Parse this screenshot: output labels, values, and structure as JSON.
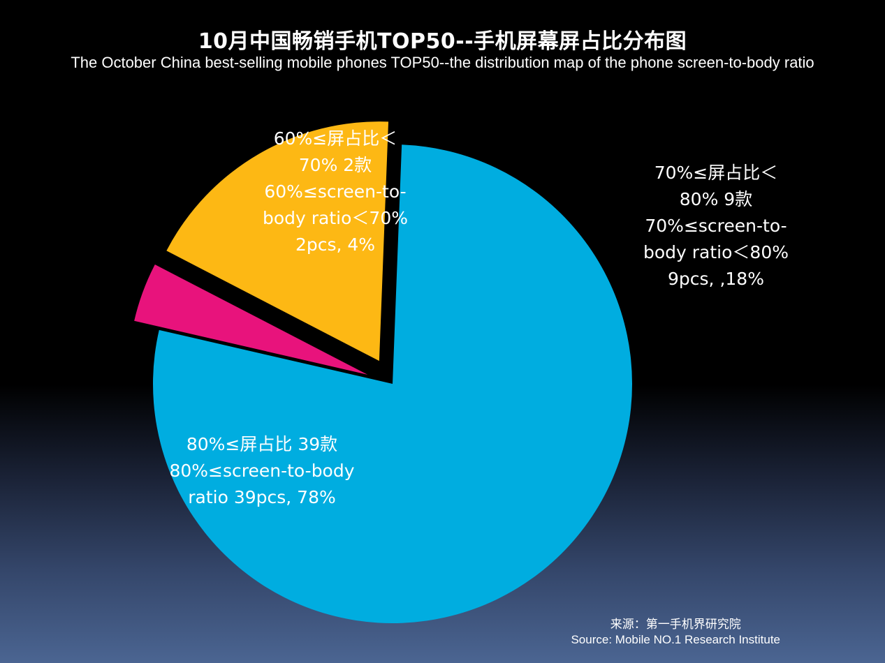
{
  "chart_data": {
    "type": "pie",
    "title": "10月中国畅销手机TOP50--手机屏幕屏占比分布图",
    "subtitle": "The October China best-selling mobile phones TOP50--the distribution map of the phone screen-to-body ratio",
    "slices": [
      {
        "label_lines": [
          "80%≤屏占比 39款",
          "80%≤screen-to-body",
          "ratio 39pcs,  78%"
        ],
        "value": 39,
        "percent": 78,
        "color": "#00ade0"
      },
      {
        "label_lines": [
          "60%≤屏占比＜",
          "70% 2款",
          "60%≤screen-to-",
          "body ratio＜70%",
          "2pcs, 4%"
        ],
        "value": 2,
        "percent": 4,
        "color": "#e8137c"
      },
      {
        "label_lines": [
          "70%≤屏占比＜",
          "80% 9款",
          "70%≤screen-to-",
          "body ratio＜80%",
          "9pcs, ,18%"
        ],
        "value": 9,
        "percent": 18,
        "color": "#fdb814"
      }
    ]
  },
  "source": {
    "cn": "来源：第一手机界研究院",
    "en": "Source: Mobile NO.1 Research Institute"
  }
}
